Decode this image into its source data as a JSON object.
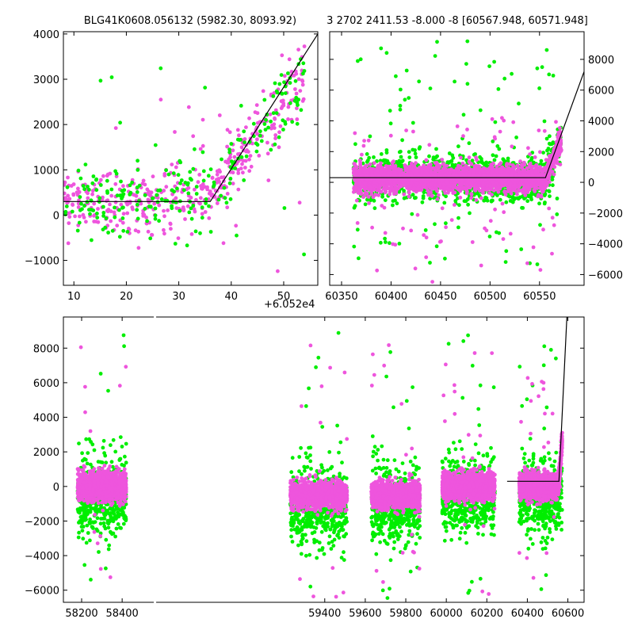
{
  "figure": {
    "title_left": "BLG41K0608.056132 (5982.30, 8093.92)",
    "title_right": "3 2702 2411.53 -8.000 -8 [60567.948, 60571.948]",
    "offset_label": "+6.052e4"
  },
  "colors": {
    "series_a": "#00ee00",
    "series_b": "#ee55dd",
    "model": "#000000"
  },
  "chart_data": [
    {
      "name": "zoom-left",
      "type": "scatter",
      "xlim": [
        8,
        56.5
      ],
      "ylim": [
        -1550,
        4050
      ],
      "xticks": [
        10,
        20,
        30,
        40,
        50
      ],
      "yticks": [
        -1000,
        0,
        1000,
        2000,
        3000,
        4000
      ],
      "xtick_labels": [
        "10",
        "20",
        "30",
        "40",
        "50"
      ],
      "ytick_labels": [
        "−1000",
        "0",
        "1000",
        "2000",
        "3000",
        "4000"
      ],
      "model": {
        "x": [
          8,
          36,
          56.5
        ],
        "y": [
          300,
          300,
          4000
        ]
      },
      "series": [
        {
          "color_key": "series_b",
          "n": 420,
          "xrange": [
            8,
            54
          ],
          "baseline_segments": [
            [
              8,
              18,
              350,
              300
            ],
            [
              18,
              36,
              300,
              500
            ],
            [
              36,
              54,
              500,
              3000
            ]
          ],
          "noise": 350,
          "outliers": 18,
          "outlier_range": [
            -1300,
            4000
          ]
        },
        {
          "color_key": "series_a",
          "n": 230,
          "xrange": [
            8,
            54
          ],
          "baseline_segments": [
            [
              8,
              18,
              300,
              300
            ],
            [
              18,
              36,
              300,
              500
            ],
            [
              36,
              54,
              500,
              3100
            ]
          ],
          "noise": 420,
          "outliers": 16,
          "outlier_range": [
            -1300,
            3900
          ]
        }
      ]
    },
    {
      "name": "zoom-right",
      "type": "scatter",
      "xlim": [
        60338,
        60595
      ],
      "ylim": [
        -6700,
        9800
      ],
      "xticks": [
        60350,
        60400,
        60450,
        60500,
        60550
      ],
      "yticks": [
        -6000,
        -4000,
        -2000,
        0,
        2000,
        4000,
        6000,
        8000
      ],
      "xtick_labels": [
        "60350",
        "60400",
        "60450",
        "60500",
        "60550"
      ],
      "ytick_labels": [
        "−6000",
        "−4000",
        "−2000",
        "0",
        "2000",
        "4000",
        "6000",
        "8000"
      ],
      "model": {
        "x": [
          60338,
          60556,
          60595
        ],
        "y": [
          300,
          300,
          7200
        ]
      },
      "series": [
        {
          "color_key": "series_a",
          "n": 1300,
          "xrange": [
            60362,
            60572
          ],
          "baseline_segments": [
            [
              60362,
              60556,
              250,
              250
            ],
            [
              60556,
              60572,
              300,
              3000
            ]
          ],
          "noise": 700,
          "outliers": 120,
          "outlier_range": [
            -5500,
            9300
          ]
        },
        {
          "color_key": "series_b",
          "n": 2600,
          "xrange": [
            60362,
            60572
          ],
          "baseline_segments": [
            [
              60362,
              60556,
              250,
              250
            ],
            [
              60556,
              60572,
              300,
              2800
            ]
          ],
          "noise": 420,
          "outliers": 90,
          "outlier_range": [
            -6500,
            4200
          ]
        }
      ]
    },
    {
      "name": "full-lightcurve",
      "type": "scatter",
      "xlim": [
        58110,
        60680
      ],
      "ylim": [
        -6700,
        9800
      ],
      "xticks": [
        58200,
        58400,
        59400,
        59600,
        59800,
        60000,
        60200,
        60400,
        60600
      ],
      "yticks": [
        -6000,
        -4000,
        -2000,
        0,
        2000,
        4000,
        6000,
        8000
      ],
      "xtick_labels": [
        "58200",
        "58400",
        "59400",
        "59600",
        "59800",
        "60000",
        "60200",
        "60400",
        "60600"
      ],
      "ytick_labels": [
        "−6000",
        "−4000",
        "−2000",
        "0",
        "2000",
        "4000",
        "6000",
        "8000"
      ],
      "break_x": 58560,
      "model": {
        "x": [
          60300,
          60556,
          60595
        ],
        "y": [
          300,
          300,
          9800
        ]
      },
      "seasons": [
        [
          58180,
          58420
        ],
        [
          59230,
          59510
        ],
        [
          59630,
          59870
        ],
        [
          59980,
          60240
        ],
        [
          60360,
          60572
        ]
      ],
      "series": [
        {
          "color_key": "series_a",
          "n_per_season": 520,
          "noise": 1100,
          "outliers": 40,
          "outlier_range": [
            -6500,
            9300
          ]
        },
        {
          "color_key": "series_b",
          "n_per_season": 1500,
          "noise": 480,
          "outliers": 35,
          "outlier_range": [
            -6500,
            8200
          ]
        }
      ]
    }
  ]
}
